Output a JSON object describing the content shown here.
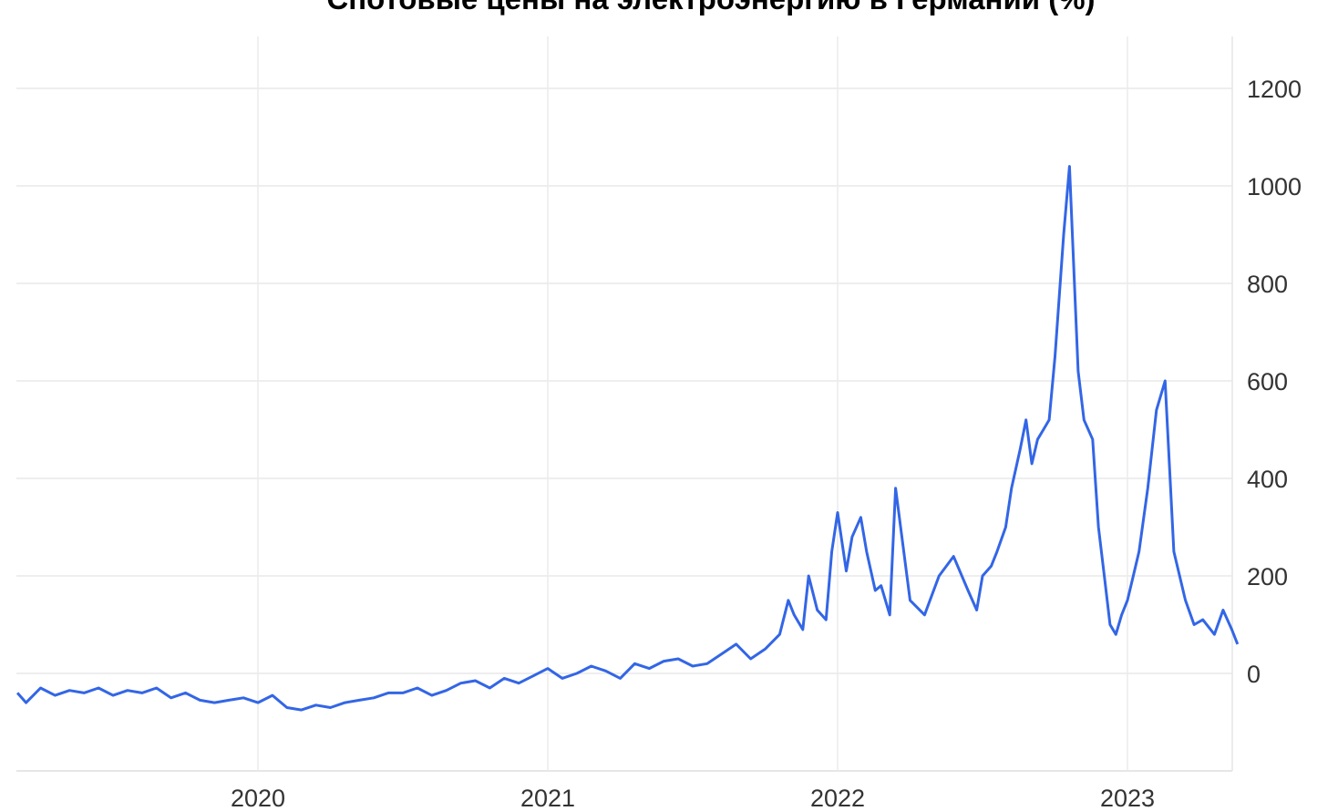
{
  "chart_data": {
    "type": "line",
    "title": "Спотовые цены на электроэнергию в Германии (%)",
    "xlabel": "",
    "ylabel": "",
    "x_ticks": [
      "2020",
      "2021",
      "2022",
      "2023"
    ],
    "y_ticks": [
      "0",
      "200",
      "400",
      "600",
      "800",
      "1000",
      "1200"
    ],
    "ylim": [
      -200,
      1200
    ],
    "xlim": [
      2019.17,
      2023.38
    ],
    "grid": true,
    "legend": "none",
    "series": [
      {
        "color": "#3366e6",
        "x": [
          2019.17,
          2019.2,
          2019.25,
          2019.3,
          2019.35,
          2019.4,
          2019.45,
          2019.5,
          2019.55,
          2019.6,
          2019.65,
          2019.7,
          2019.75,
          2019.8,
          2019.85,
          2019.9,
          2019.95,
          2020.0,
          2020.05,
          2020.1,
          2020.15,
          2020.2,
          2020.25,
          2020.3,
          2020.35,
          2020.4,
          2020.45,
          2020.5,
          2020.55,
          2020.6,
          2020.65,
          2020.7,
          2020.75,
          2020.8,
          2020.85,
          2020.9,
          2020.95,
          2021.0,
          2021.05,
          2021.1,
          2021.15,
          2021.2,
          2021.25,
          2021.3,
          2021.35,
          2021.4,
          2021.45,
          2021.5,
          2021.55,
          2021.6,
          2021.65,
          2021.7,
          2021.75,
          2021.8,
          2021.83,
          2021.85,
          2021.88,
          2021.9,
          2021.93,
          2021.96,
          2021.98,
          2022.0,
          2022.03,
          2022.05,
          2022.08,
          2022.1,
          2022.13,
          2022.15,
          2022.18,
          2022.2,
          2022.25,
          2022.3,
          2022.35,
          2022.4,
          2022.45,
          2022.48,
          2022.5,
          2022.53,
          2022.55,
          2022.58,
          2022.6,
          2022.63,
          2022.65,
          2022.67,
          2022.69,
          2022.71,
          2022.73,
          2022.75,
          2022.78,
          2022.8,
          2022.83,
          2022.85,
          2022.88,
          2022.9,
          2022.92,
          2022.94,
          2022.96,
          2022.98,
          2023.0,
          2023.02,
          2023.04,
          2023.07,
          2023.1,
          2023.13,
          2023.16,
          2023.2,
          2023.23,
          2023.26,
          2023.3,
          2023.33,
          2023.36,
          2023.38
        ],
        "values": [
          -40,
          -60,
          -30,
          -45,
          -35,
          -40,
          -30,
          -45,
          -35,
          -40,
          -30,
          -50,
          -40,
          -55,
          -60,
          -55,
          -50,
          -60,
          -45,
          -70,
          -75,
          -65,
          -70,
          -60,
          -55,
          -50,
          -40,
          -40,
          -30,
          -45,
          -35,
          -20,
          -15,
          -30,
          -10,
          -20,
          -5,
          10,
          -10,
          0,
          15,
          5,
          -10,
          20,
          10,
          25,
          30,
          15,
          20,
          40,
          60,
          30,
          50,
          80,
          150,
          120,
          90,
          200,
          130,
          110,
          250,
          330,
          210,
          280,
          320,
          250,
          170,
          180,
          120,
          380,
          150,
          120,
          200,
          240,
          170,
          130,
          200,
          220,
          250,
          300,
          380,
          460,
          520,
          430,
          480,
          500,
          520,
          650,
          900,
          1040,
          620,
          520,
          480,
          300,
          200,
          100,
          80,
          120,
          150,
          200,
          250,
          380,
          540,
          600,
          250,
          150,
          100,
          110,
          80,
          130,
          90,
          60
        ]
      }
    ]
  }
}
